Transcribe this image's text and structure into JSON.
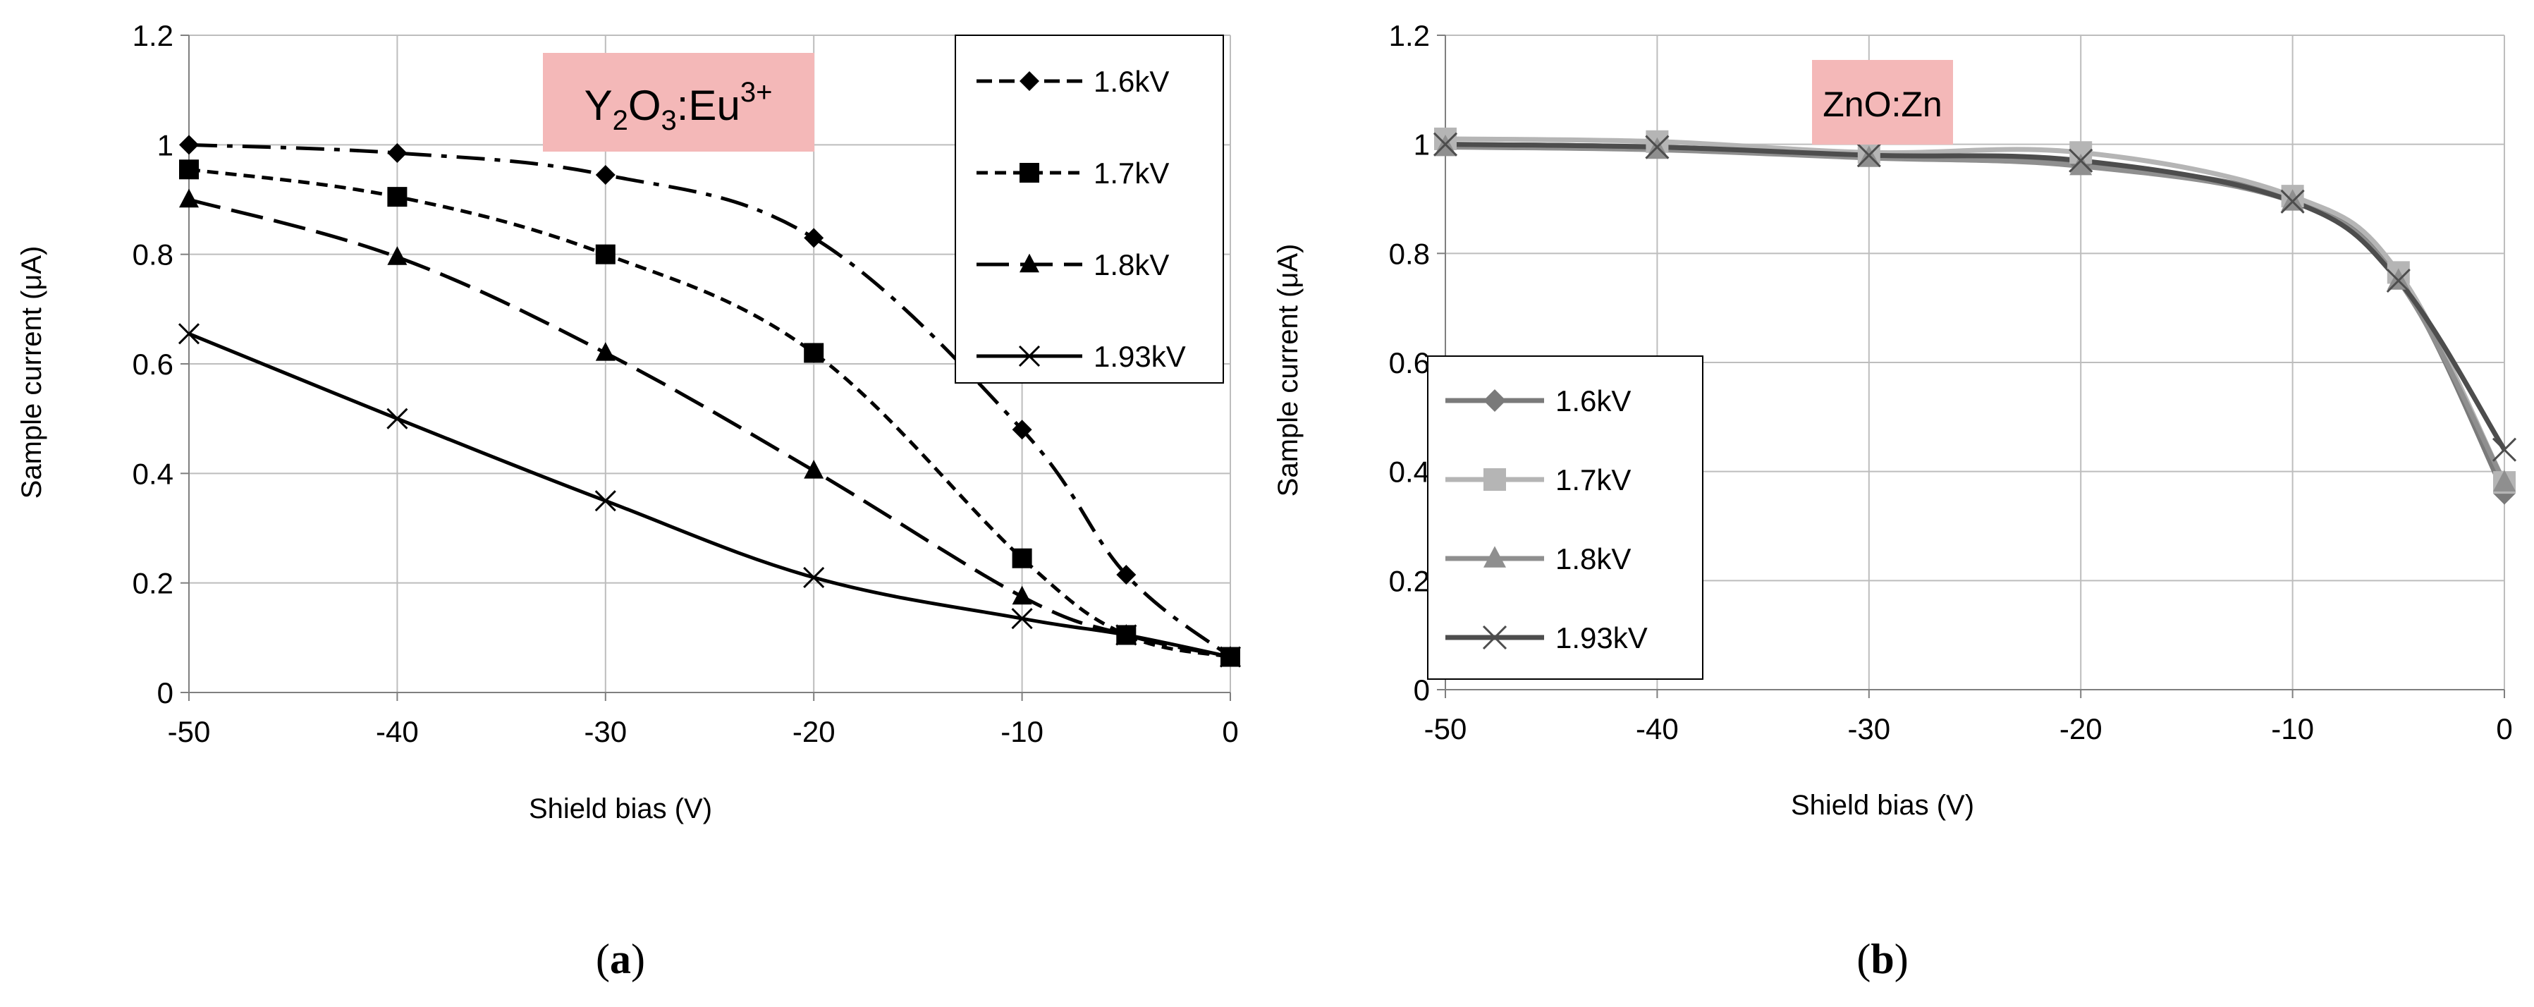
{
  "chart_data": [
    {
      "type": "line",
      "panel_label": "a",
      "annotation": {
        "base": "Y",
        "sub1": "2",
        "mid": "O",
        "sub2": "3",
        "rest": ":Eu",
        "sup": "3+",
        "box_color": "#f4b8b8"
      },
      "xlabel": "Shield bias (V)",
      "ylabel": "Sample current (μA)",
      "x": [
        -50,
        -40,
        -30,
        -20,
        -10,
        -5,
        0
      ],
      "xlim": [
        -50,
        0
      ],
      "ylim": [
        0,
        1.2
      ],
      "xticks": [
        "-50",
        "-40",
        "-30",
        "-20",
        "-10",
        "0"
      ],
      "xtick_values": [
        -50,
        -40,
        -30,
        -20,
        -10,
        0
      ],
      "yticks": [
        "0",
        "0.2",
        "0.4",
        "0.6",
        "0.8",
        "1",
        "1.2"
      ],
      "ytick_values": [
        0,
        0.2,
        0.4,
        0.6,
        0.8,
        1.0,
        1.2
      ],
      "grid": true,
      "legend_position": "top-right",
      "series": [
        {
          "name": "1.6kV",
          "marker": "diamond",
          "dash": "dashdot",
          "color": "#000000",
          "values": [
            1.0,
            0.985,
            0.945,
            0.83,
            0.48,
            0.215,
            0.065
          ]
        },
        {
          "name": "1.7kV",
          "marker": "square",
          "dash": "short",
          "color": "#000000",
          "values": [
            0.955,
            0.905,
            0.8,
            0.62,
            0.245,
            0.105,
            0.065
          ]
        },
        {
          "name": "1.8kV",
          "marker": "triangle",
          "dash": "long",
          "color": "#000000",
          "values": [
            0.9,
            0.795,
            0.62,
            0.405,
            0.175,
            0.105,
            0.065
          ]
        },
        {
          "name": "1.93kV",
          "marker": "x",
          "dash": "solid",
          "color": "#000000",
          "values": [
            0.655,
            0.5,
            0.35,
            0.21,
            0.135,
            0.105,
            0.065
          ]
        }
      ]
    },
    {
      "type": "line",
      "panel_label": "b",
      "annotation": {
        "text": "ZnO:Zn",
        "box_color": "#f4b8b8"
      },
      "xlabel": "Shield bias (V)",
      "ylabel": "Sample current (μA)",
      "x": [
        -50,
        -40,
        -30,
        -20,
        -10,
        -5,
        0
      ],
      "xlim": [
        -50,
        0
      ],
      "ylim": [
        0,
        1.2
      ],
      "xticks": [
        "-50",
        "-40",
        "-30",
        "-20",
        "-10",
        "0"
      ],
      "xtick_values": [
        -50,
        -40,
        -30,
        -20,
        -10,
        0
      ],
      "yticks": [
        "0",
        "0.2",
        "0.4",
        "0.6",
        "0.8",
        "1",
        "1.2"
      ],
      "ytick_values": [
        0,
        0.2,
        0.4,
        0.6,
        0.8,
        1.0,
        1.2
      ],
      "grid": true,
      "legend_position": "bottom-left",
      "series": [
        {
          "name": "1.6kV",
          "marker": "diamond",
          "dash": "solid",
          "color": "#7a7a7a",
          "values": [
            1.0,
            0.995,
            0.98,
            0.965,
            0.9,
            0.755,
            0.36
          ]
        },
        {
          "name": "1.7kV",
          "marker": "square",
          "dash": "solid",
          "color": "#b5b5b5",
          "values": [
            1.01,
            1.005,
            0.985,
            0.985,
            0.905,
            0.765,
            0.38
          ]
        },
        {
          "name": "1.8kV",
          "marker": "triangle",
          "dash": "solid",
          "color": "#8f8f8f",
          "values": [
            0.995,
            0.99,
            0.975,
            0.96,
            0.895,
            0.75,
            0.38
          ]
        },
        {
          "name": "1.93kV",
          "marker": "x",
          "dash": "solid",
          "color": "#4d4d4d",
          "values": [
            1.0,
            0.995,
            0.98,
            0.97,
            0.895,
            0.75,
            0.44
          ]
        }
      ]
    }
  ]
}
